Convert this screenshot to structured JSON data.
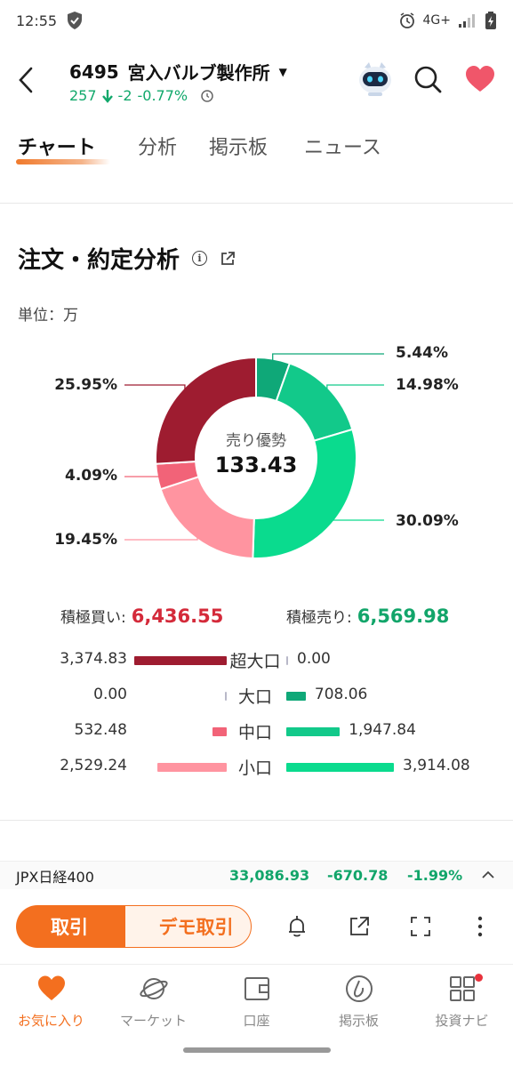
{
  "status_bar": {
    "time": "12:55",
    "network": "4G+"
  },
  "header": {
    "code": "6495",
    "name": "宮入バルブ製作所",
    "price": "257",
    "change": "-2",
    "change_pct": "-0.77%"
  },
  "tabs": [
    {
      "label": "チャート",
      "active": true
    },
    {
      "label": "分析"
    },
    {
      "label": "掲示板"
    },
    {
      "label": "ニュース"
    }
  ],
  "section": {
    "title": "注文・約定分析",
    "unit": "単位：万"
  },
  "donut": {
    "center_label": "売り優勢",
    "center_value": "133.43",
    "segments": [
      {
        "label": "5.44%",
        "value": 5.44,
        "color": "#0fa878"
      },
      {
        "label": "14.98%",
        "value": 14.98,
        "color": "#12c98a"
      },
      {
        "label": "30.09%",
        "value": 30.09,
        "color": "#0adb8e"
      },
      {
        "label": "19.45%",
        "value": 19.45,
        "color": "#ff94a0"
      },
      {
        "label": "4.09%",
        "value": 4.09,
        "color": "#f26378"
      },
      {
        "label": "25.95%",
        "value": 25.95,
        "color": "#9e1c30"
      }
    ]
  },
  "totals": {
    "buy_label": "積極買い:",
    "buy_value": "6,436.55",
    "sell_label": "積極売り:",
    "sell_value": "6,569.98"
  },
  "rows": [
    {
      "category": "超大口",
      "buy": "3,374.83",
      "buy_num": 3374.83,
      "sell": "0.00",
      "sell_num": 0,
      "buy_color": "#9e1c30",
      "sell_color": "#0fa878"
    },
    {
      "category": "大口",
      "buy": "0.00",
      "buy_num": 0,
      "sell": "708.06",
      "sell_num": 708.06,
      "buy_color": "#9e1c30",
      "sell_color": "#0fa878"
    },
    {
      "category": "中口",
      "buy": "532.48",
      "buy_num": 532.48,
      "sell": "1,947.84",
      "sell_num": 1947.84,
      "buy_color": "#f26378",
      "sell_color": "#12c98a"
    },
    {
      "category": "小口",
      "buy": "2,529.24",
      "buy_num": 2529.24,
      "sell": "3,914.08",
      "sell_num": 3914.08,
      "buy_color": "#ff94a0",
      "sell_color": "#0adb8e"
    }
  ],
  "index_ticker": {
    "name": "JPX日経400",
    "price": "33,086.93",
    "change": "-670.78",
    "change_pct": "-1.99%"
  },
  "actions": {
    "trade_label": "取引",
    "demo_label": "デモ取引"
  },
  "bottom_nav": [
    {
      "label": "お気に入り",
      "icon": "heart-icon",
      "active": true
    },
    {
      "label": "マーケット",
      "icon": "planet-icon"
    },
    {
      "label": "口座",
      "icon": "wallet-icon"
    },
    {
      "label": "掲示板",
      "icon": "board-icon"
    },
    {
      "label": "投資ナビ",
      "icon": "grid-icon"
    }
  ]
}
